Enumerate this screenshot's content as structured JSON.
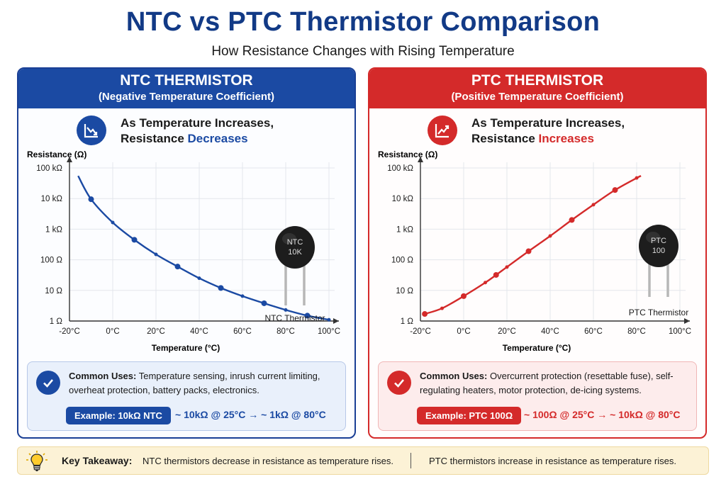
{
  "title": "NTC vs PTC Thermistor Comparison",
  "subtitle": "How Resistance Changes with Rising Temperature",
  "ntc": {
    "heading": "NTC THERMISTOR",
    "subheading": "(Negative Temperature Coefficient)",
    "statement_line1": "As Temperature Increases,",
    "statement_prefix": "Resistance ",
    "statement_highlight": "Decreases",
    "component_label_line1": "NTC",
    "component_label_line2": "10K",
    "component_caption": "NTC Thermistor",
    "uses_label": "Common Uses:",
    "uses_text": " Temperature sensing, inrush current limiting, overheat protection, battery packs, electronics.",
    "example_label": "Example: 10kΩ NTC",
    "example_value": "~ 10kΩ @ 25°C → ~ 1kΩ @ 80°C",
    "color": "#1b4aa3"
  },
  "ptc": {
    "heading": "PTC THERMISTOR",
    "subheading": "(Positive Temperature Coefficient)",
    "statement_line1": "As Temperature Increases,",
    "statement_prefix": "Resistance ",
    "statement_highlight": "Increases",
    "component_label_line1": "PTC",
    "component_label_line2": "100",
    "component_caption": "PTC Thermistor",
    "uses_label": "Common Uses:",
    "uses_text": " Overcurrent protection (resettable fuse), self-regulating heaters, motor protection, de-icing systems.",
    "example_label": "Example: PTC 100Ω",
    "example_value": "~ 100Ω @ 25°C → ~ 10kΩ @ 80°C",
    "color": "#d42a2a"
  },
  "takeaway": {
    "label": "Key Takeaway:",
    "ntc_text": "NTC thermistors decrease in resistance as temperature rises.",
    "ptc_text": "PTC thermistors increase in resistance as temperature rises."
  },
  "chart_data": [
    {
      "type": "line",
      "name": "ntc-chart",
      "ylabel": "Resistance (Ω)",
      "xlabel": "Temperature (°C)",
      "x_ticks": [
        "-20°C",
        "0°C",
        "20°C",
        "40°C",
        "60°C",
        "80°C",
        "100°C"
      ],
      "y_ticks": [
        "100 kΩ",
        "10 kΩ",
        "1 kΩ",
        "100 Ω",
        "10 Ω",
        "1 Ω"
      ],
      "y_scale": "log",
      "xlim": [
        -20,
        100
      ],
      "ylim": [
        1,
        100000
      ],
      "grid": true,
      "color": "#1b4aa3",
      "curve": [
        [
          -16,
          55000
        ],
        [
          -10,
          9500
        ],
        [
          0,
          1650
        ],
        [
          10,
          450
        ],
        [
          20,
          150
        ],
        [
          30,
          60
        ],
        [
          40,
          25
        ],
        [
          50,
          12
        ],
        [
          60,
          6.5
        ],
        [
          70,
          3.8
        ],
        [
          80,
          2.3
        ],
        [
          90,
          1.5
        ],
        [
          100,
          1.1
        ]
      ],
      "markers": [
        [
          -10,
          9500
        ],
        [
          0,
          1650
        ],
        [
          10,
          450
        ],
        [
          20,
          150
        ],
        [
          30,
          60
        ],
        [
          40,
          25
        ],
        [
          50,
          12
        ],
        [
          60,
          6.5
        ],
        [
          70,
          3.8
        ],
        [
          80,
          2.3
        ],
        [
          90,
          1.5
        ],
        [
          100,
          1.1
        ]
      ]
    },
    {
      "type": "line",
      "name": "ptc-chart",
      "ylabel": "Resistance (Ω)",
      "xlabel": "Temperature (°C)",
      "x_ticks": [
        "-20°C",
        "0°C",
        "20°C",
        "40°C",
        "60°C",
        "80°C",
        "100°C"
      ],
      "y_ticks": [
        "100 kΩ",
        "10 kΩ",
        "1 kΩ",
        "100 Ω",
        "10 Ω",
        "1 Ω"
      ],
      "y_scale": "log",
      "xlim": [
        -20,
        100
      ],
      "ylim": [
        1,
        100000
      ],
      "grid": true,
      "color": "#d42a2a",
      "curve": [
        [
          -18,
          1.7
        ],
        [
          -10,
          2.6
        ],
        [
          0,
          6.5
        ],
        [
          10,
          18
        ],
        [
          15,
          32
        ],
        [
          20,
          58
        ],
        [
          30,
          190
        ],
        [
          40,
          600
        ],
        [
          50,
          2000
        ],
        [
          60,
          6300
        ],
        [
          70,
          19000
        ],
        [
          80,
          47000
        ],
        [
          82,
          55000
        ]
      ],
      "markers": [
        [
          -18,
          1.7
        ],
        [
          -10,
          2.6
        ],
        [
          0,
          6.5
        ],
        [
          10,
          18
        ],
        [
          15,
          32
        ],
        [
          20,
          58
        ],
        [
          30,
          190
        ],
        [
          40,
          600
        ],
        [
          50,
          2000
        ],
        [
          60,
          6300
        ],
        [
          70,
          19000
        ],
        [
          80,
          47000
        ]
      ]
    }
  ]
}
